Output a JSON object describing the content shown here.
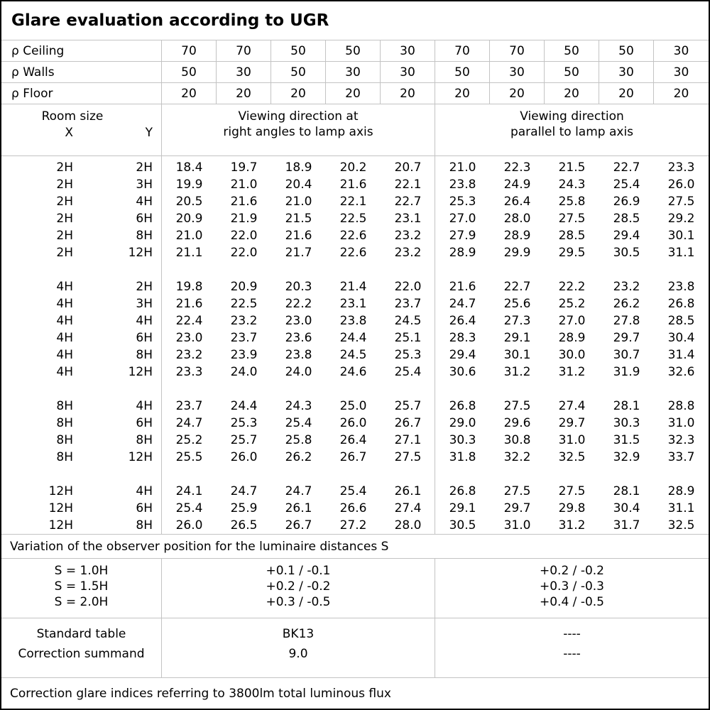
{
  "title": "Glare evaluation according to UGR",
  "reflectances": {
    "rows": [
      {
        "label": "ρ Ceiling",
        "values": [
          "70",
          "70",
          "50",
          "50",
          "30",
          "70",
          "70",
          "50",
          "50",
          "30"
        ]
      },
      {
        "label": "ρ Walls",
        "values": [
          "50",
          "30",
          "50",
          "30",
          "30",
          "50",
          "30",
          "50",
          "30",
          "30"
        ]
      },
      {
        "label": "ρ Floor",
        "values": [
          "20",
          "20",
          "20",
          "20",
          "20",
          "20",
          "20",
          "20",
          "20",
          "20"
        ]
      }
    ]
  },
  "header": {
    "room_size_label": "Room size",
    "x_label": "X",
    "y_label": "Y",
    "right_angle_group": {
      "line1": "Viewing direction at",
      "line2": "right angles to lamp axis"
    },
    "parallel_group": {
      "line1": "Viewing direction",
      "line2": "parallel to lamp axis"
    }
  },
  "ugr_table": {
    "groups": [
      {
        "rows": [
          {
            "x": "2H",
            "y": "2H",
            "right_angle": [
              "18.4",
              "19.7",
              "18.9",
              "20.2",
              "20.7"
            ],
            "parallel": [
              "21.0",
              "22.3",
              "21.5",
              "22.7",
              "23.3"
            ]
          },
          {
            "x": "2H",
            "y": "3H",
            "right_angle": [
              "19.9",
              "21.0",
              "20.4",
              "21.6",
              "22.1"
            ],
            "parallel": [
              "23.8",
              "24.9",
              "24.3",
              "25.4",
              "26.0"
            ]
          },
          {
            "x": "2H",
            "y": "4H",
            "right_angle": [
              "20.5",
              "21.6",
              "21.0",
              "22.1",
              "22.7"
            ],
            "parallel": [
              "25.3",
              "26.4",
              "25.8",
              "26.9",
              "27.5"
            ]
          },
          {
            "x": "2H",
            "y": "6H",
            "right_angle": [
              "20.9",
              "21.9",
              "21.5",
              "22.5",
              "23.1"
            ],
            "parallel": [
              "27.0",
              "28.0",
              "27.5",
              "28.5",
              "29.2"
            ]
          },
          {
            "x": "2H",
            "y": "8H",
            "right_angle": [
              "21.0",
              "22.0",
              "21.6",
              "22.6",
              "23.2"
            ],
            "parallel": [
              "27.9",
              "28.9",
              "28.5",
              "29.4",
              "30.1"
            ]
          },
          {
            "x": "2H",
            "y": "12H",
            "right_angle": [
              "21.1",
              "22.0",
              "21.7",
              "22.6",
              "23.2"
            ],
            "parallel": [
              "28.9",
              "29.9",
              "29.5",
              "30.5",
              "31.1"
            ]
          }
        ]
      },
      {
        "rows": [
          {
            "x": "4H",
            "y": "2H",
            "right_angle": [
              "19.8",
              "20.9",
              "20.3",
              "21.4",
              "22.0"
            ],
            "parallel": [
              "21.6",
              "22.7",
              "22.2",
              "23.2",
              "23.8"
            ]
          },
          {
            "x": "4H",
            "y": "3H",
            "right_angle": [
              "21.6",
              "22.5",
              "22.2",
              "23.1",
              "23.7"
            ],
            "parallel": [
              "24.7",
              "25.6",
              "25.2",
              "26.2",
              "26.8"
            ]
          },
          {
            "x": "4H",
            "y": "4H",
            "right_angle": [
              "22.4",
              "23.2",
              "23.0",
              "23.8",
              "24.5"
            ],
            "parallel": [
              "26.4",
              "27.3",
              "27.0",
              "27.8",
              "28.5"
            ]
          },
          {
            "x": "4H",
            "y": "6H",
            "right_angle": [
              "23.0",
              "23.7",
              "23.6",
              "24.4",
              "25.1"
            ],
            "parallel": [
              "28.3",
              "29.1",
              "28.9",
              "29.7",
              "30.4"
            ]
          },
          {
            "x": "4H",
            "y": "8H",
            "right_angle": [
              "23.2",
              "23.9",
              "23.8",
              "24.5",
              "25.3"
            ],
            "parallel": [
              "29.4",
              "30.1",
              "30.0",
              "30.7",
              "31.4"
            ]
          },
          {
            "x": "4H",
            "y": "12H",
            "right_angle": [
              "23.3",
              "24.0",
              "24.0",
              "24.6",
              "25.4"
            ],
            "parallel": [
              "30.6",
              "31.2",
              "31.2",
              "31.9",
              "32.6"
            ]
          }
        ]
      },
      {
        "rows": [
          {
            "x": "8H",
            "y": "4H",
            "right_angle": [
              "23.7",
              "24.4",
              "24.3",
              "25.0",
              "25.7"
            ],
            "parallel": [
              "26.8",
              "27.5",
              "27.4",
              "28.1",
              "28.8"
            ]
          },
          {
            "x": "8H",
            "y": "6H",
            "right_angle": [
              "24.7",
              "25.3",
              "25.4",
              "26.0",
              "26.7"
            ],
            "parallel": [
              "29.0",
              "29.6",
              "29.7",
              "30.3",
              "31.0"
            ]
          },
          {
            "x": "8H",
            "y": "8H",
            "right_angle": [
              "25.2",
              "25.7",
              "25.8",
              "26.4",
              "27.1"
            ],
            "parallel": [
              "30.3",
              "30.8",
              "31.0",
              "31.5",
              "32.3"
            ]
          },
          {
            "x": "8H",
            "y": "12H",
            "right_angle": [
              "25.5",
              "26.0",
              "26.2",
              "26.7",
              "27.5"
            ],
            "parallel": [
              "31.8",
              "32.2",
              "32.5",
              "32.9",
              "33.7"
            ]
          }
        ]
      },
      {
        "rows": [
          {
            "x": "12H",
            "y": "4H",
            "right_angle": [
              "24.1",
              "24.7",
              "24.7",
              "25.4",
              "26.1"
            ],
            "parallel": [
              "26.8",
              "27.5",
              "27.5",
              "28.1",
              "28.9"
            ]
          },
          {
            "x": "12H",
            "y": "6H",
            "right_angle": [
              "25.4",
              "25.9",
              "26.1",
              "26.6",
              "27.4"
            ],
            "parallel": [
              "29.1",
              "29.7",
              "29.8",
              "30.4",
              "31.1"
            ]
          },
          {
            "x": "12H",
            "y": "8H",
            "right_angle": [
              "26.0",
              "26.5",
              "26.7",
              "27.2",
              "28.0"
            ],
            "parallel": [
              "30.5",
              "31.0",
              "31.2",
              "31.7",
              "32.5"
            ]
          }
        ]
      }
    ]
  },
  "variation": {
    "note": "Variation of the observer position for the luminaire distances S",
    "rows": [
      {
        "s": "S = 1.0H",
        "right_angle": "+0.1 / -0.1",
        "parallel": "+0.2 / -0.2"
      },
      {
        "s": "S = 1.5H",
        "right_angle": "+0.2 / -0.2",
        "parallel": "+0.3 / -0.3"
      },
      {
        "s": "S = 2.0H",
        "right_angle": "+0.3 / -0.5",
        "parallel": "+0.4 / -0.5"
      }
    ]
  },
  "summary": {
    "rows": [
      {
        "label": "Standard table",
        "right_angle": "BK13",
        "parallel": "----"
      },
      {
        "label": "Correction summand",
        "right_angle": "9.0",
        "parallel": "----"
      }
    ]
  },
  "footer_note": "Correction glare indices referring to 3800lm total luminous flux",
  "colors": {
    "background": "#ffffff",
    "text": "#000000",
    "grid": "#c3c3c3",
    "border": "#000000"
  }
}
